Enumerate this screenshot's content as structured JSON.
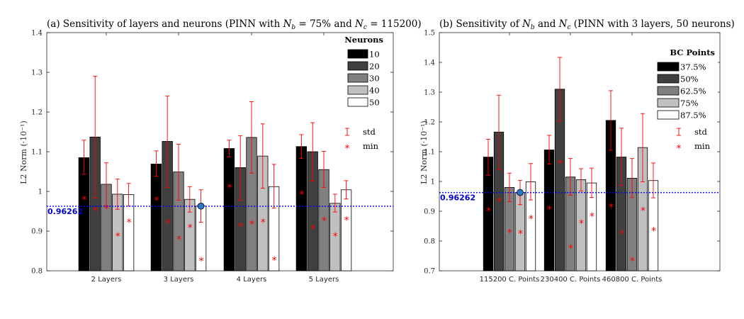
{
  "chart_data": [
    {
      "type": "bar",
      "title": "(a) Sensitivity of layers and neurons (PINN with N_b = 75% and N_c = 115200)",
      "title_parts": {
        "prefix": "(a) Sensitivity of layers and neurons (PINN with ",
        "nb_label": "N",
        "nb_sub": "b",
        "nb_text": " = 75% and ",
        "nc_label": "N",
        "nc_sub": "c",
        "nc_text": " = 115200)"
      },
      "ylabel": "L2 Norm (·10⁻¹)",
      "ylim": [
        0.8,
        1.4
      ],
      "yticks": [
        0.8,
        0.9,
        1,
        1.1,
        1.2,
        1.3,
        1.4
      ],
      "ytick_labels": [
        "0.8",
        "0.9",
        "1",
        "1.1",
        "1.2",
        "1.3",
        "1.4"
      ],
      "categories": [
        "2 Layers",
        "3 Layers",
        "4 Layers",
        "5 Layers"
      ],
      "legend_title": "Neurons",
      "legend_labels": [
        "10",
        "20",
        "30",
        "40",
        "50"
      ],
      "series": [
        {
          "name": "10",
          "values": [
            1.085,
            1.069,
            1.108,
            1.113
          ],
          "err_low": [
            1.043,
            1.038,
            1.087,
            1.083
          ],
          "err_high": [
            1.129,
            1.102,
            1.129,
            1.143
          ],
          "min": [
            0.985,
            0.983,
            1.015,
            0.998
          ]
        },
        {
          "name": "20",
          "values": [
            1.137,
            1.126,
            1.06,
            1.1
          ],
          "err_low": [
            0.983,
            1.01,
            0.978,
            1.026
          ],
          "err_high": [
            1.29,
            1.24,
            1.14,
            1.173
          ],
          "min": [
            0.957,
            0.926,
            0.917,
            0.912
          ]
        },
        {
          "name": "30",
          "values": [
            1.018,
            1.049,
            1.136,
            1.055
          ],
          "err_low": [
            0.964,
            0.978,
            1.046,
            1.01
          ],
          "err_high": [
            1.072,
            1.119,
            1.226,
            1.101
          ],
          "min": [
            0.962,
            0.885,
            0.923,
            0.932
          ]
        },
        {
          "name": "40",
          "values": [
            0.993,
            0.98,
            1.089,
            0.97
          ],
          "err_low": [
            0.955,
            0.948,
            1.008,
            0.948
          ],
          "err_high": [
            1.031,
            1.012,
            1.17,
            0.993
          ],
          "min": [
            0.893,
            0.914,
            0.928,
            0.893
          ]
        },
        {
          "name": "50",
          "values": [
            0.992,
            0.963,
            1.012,
            1.004
          ],
          "err_low": [
            0.963,
            0.922,
            0.958,
            0.981
          ],
          "err_high": [
            1.02,
            1.004,
            1.068,
            1.027
          ],
          "min": [
            0.928,
            0.83,
            0.832,
            0.933
          ]
        }
      ],
      "reference_line": {
        "value": 0.96262,
        "label": "0.96262"
      },
      "highlight": {
        "category_index": 1,
        "series_index": 4,
        "value": 0.963
      },
      "std_label": "std",
      "min_label": "min",
      "star_glyph": "*"
    },
    {
      "type": "bar",
      "title": "(b) Sensitivity of N_b and N_c (PINN with 3 layers, 50 neurons)",
      "title_parts": {
        "prefix": "(b) Sensitivity of ",
        "nb_label": "N",
        "nb_sub": "b",
        "nb_text": " and ",
        "nc_label": "N",
        "nc_sub": "c",
        "nc_text": " (PINN with 3 layers, 50 neurons)"
      },
      "ylabel": "L2 Norm (·10⁻¹)",
      "ylim": [
        0.7,
        1.5
      ],
      "yticks": [
        0.7,
        0.8,
        0.9,
        1,
        1.1,
        1.2,
        1.3,
        1.4,
        1.5
      ],
      "ytick_labels": [
        "0.7",
        "0.8",
        "0.9",
        "1",
        "1.1",
        "1.2",
        "1.3",
        "1.4",
        "1.5"
      ],
      "categories": [
        "115200 C. Points",
        "230400 C. Points",
        "460800 C. Points"
      ],
      "legend_title": "BC Points",
      "legend_labels": [
        "37.5%",
        "50%",
        "62.5%",
        "75%",
        "87.5%"
      ],
      "series": [
        {
          "name": "37.5%",
          "values": [
            1.082,
            1.106,
            1.205
          ],
          "err_low": [
            1.021,
            1.058,
            1.105
          ],
          "err_high": [
            1.142,
            1.155,
            1.305
          ],
          "min": [
            0.908,
            0.913,
            0.922
          ]
        },
        {
          "name": "50%",
          "values": [
            1.166,
            1.31,
            1.082
          ],
          "err_low": [
            1.04,
            1.202,
            0.986
          ],
          "err_high": [
            1.29,
            1.417,
            1.179
          ],
          "min": [
            0.94,
            1.068,
            0.832
          ]
        },
        {
          "name": "62.5%",
          "values": [
            0.98,
            1.015,
            1.011
          ],
          "err_low": [
            0.932,
            0.954,
            0.946
          ],
          "err_high": [
            1.028,
            1.077,
            1.077
          ],
          "min": [
            0.836,
            0.783,
            0.741
          ]
        },
        {
          "name": "75%",
          "values": [
            0.963,
            1.006,
            1.114
          ],
          "err_low": [
            0.922,
            0.968,
            0.999
          ],
          "err_high": [
            1.004,
            1.043,
            1.228
          ],
          "min": [
            0.832,
            0.867,
            0.91
          ]
        },
        {
          "name": "87.5%",
          "values": [
            0.999,
            0.995,
            1.003
          ],
          "err_low": [
            0.938,
            0.946,
            0.945
          ],
          "err_high": [
            1.06,
            1.045,
            1.062
          ],
          "min": [
            0.882,
            0.89,
            0.842
          ]
        }
      ],
      "reference_line": {
        "value": 0.96262,
        "label": "0.96262"
      },
      "highlight": {
        "category_index": 0,
        "series_index": 3,
        "value": 0.963
      },
      "std_label": "std",
      "min_label": "min",
      "star_glyph": "*"
    }
  ],
  "colors": {
    "bars": [
      "#000000",
      "#404040",
      "#808080",
      "#c0c0c0",
      "#ffffff"
    ],
    "error": "#ff0000",
    "min_marker": "#ff0000",
    "reference": "#0000ff",
    "reference_label": "#0000cc",
    "highlight": "#2e75c8"
  }
}
